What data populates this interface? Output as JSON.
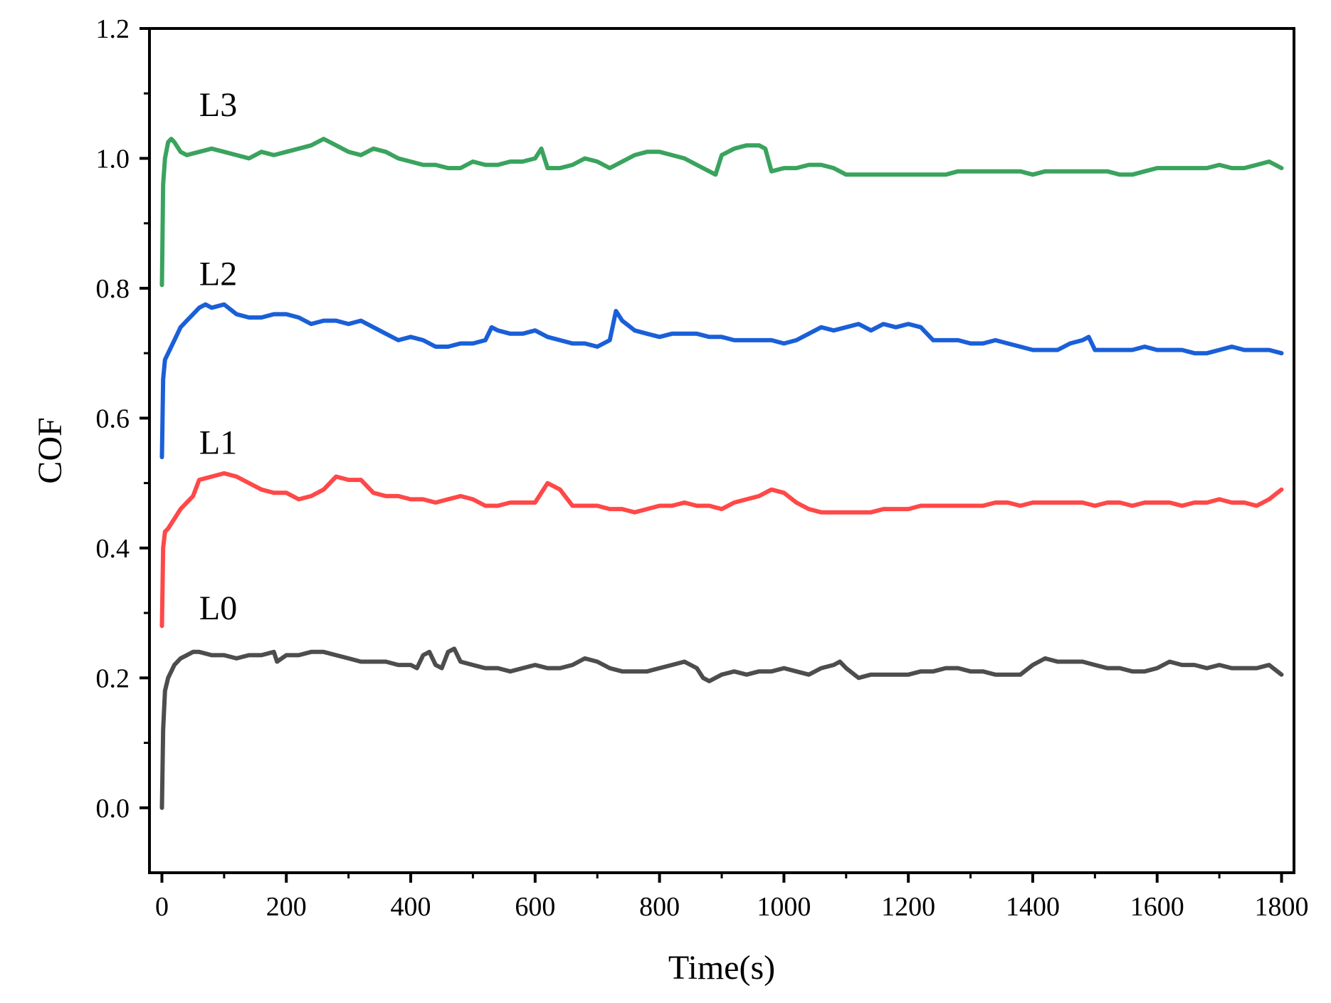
{
  "chart_data": {
    "type": "line",
    "title": "",
    "xlabel": "Time(s)",
    "ylabel": "COF",
    "xlim": [
      -20,
      1820
    ],
    "ylim": [
      -0.1,
      1.2
    ],
    "xticks": [
      0,
      200,
      400,
      600,
      800,
      1000,
      1200,
      1400,
      1600,
      1800
    ],
    "xtick_labels": [
      "0",
      "200",
      "400",
      "600",
      "800",
      "1000",
      "1200",
      "1400",
      "1600",
      "1800"
    ],
    "yticks": [
      0.0,
      0.2,
      0.4,
      0.6,
      0.8,
      1.0,
      1.2
    ],
    "ytick_labels": [
      "0.0",
      "0.2",
      "0.4",
      "0.6",
      "0.8",
      "1.0",
      "1.2"
    ],
    "grid": false,
    "legend": "inline labels",
    "series": [
      {
        "name": "L0",
        "color": "#4d4d4d",
        "label_at": [
          60,
          0.29
        ],
        "x": [
          0,
          2,
          5,
          10,
          20,
          30,
          40,
          50,
          60,
          80,
          100,
          120,
          140,
          160,
          180,
          185,
          200,
          220,
          240,
          260,
          280,
          300,
          320,
          340,
          360,
          380,
          400,
          410,
          420,
          430,
          440,
          450,
          460,
          470,
          480,
          500,
          520,
          540,
          560,
          580,
          600,
          620,
          640,
          660,
          680,
          700,
          720,
          740,
          760,
          780,
          800,
          820,
          840,
          860,
          870,
          880,
          900,
          920,
          940,
          960,
          980,
          1000,
          1020,
          1040,
          1060,
          1080,
          1090,
          1100,
          1120,
          1140,
          1160,
          1180,
          1200,
          1220,
          1240,
          1260,
          1280,
          1300,
          1320,
          1340,
          1360,
          1380,
          1400,
          1420,
          1440,
          1460,
          1480,
          1500,
          1520,
          1540,
          1560,
          1580,
          1600,
          1620,
          1640,
          1660,
          1680,
          1700,
          1720,
          1740,
          1760,
          1780,
          1800
        ],
        "y": [
          0.0,
          0.12,
          0.18,
          0.2,
          0.22,
          0.23,
          0.235,
          0.24,
          0.24,
          0.235,
          0.235,
          0.23,
          0.235,
          0.235,
          0.24,
          0.225,
          0.235,
          0.235,
          0.24,
          0.24,
          0.235,
          0.23,
          0.225,
          0.225,
          0.225,
          0.22,
          0.22,
          0.215,
          0.235,
          0.24,
          0.22,
          0.215,
          0.24,
          0.245,
          0.225,
          0.22,
          0.215,
          0.215,
          0.21,
          0.215,
          0.22,
          0.215,
          0.215,
          0.22,
          0.23,
          0.225,
          0.215,
          0.21,
          0.21,
          0.21,
          0.215,
          0.22,
          0.225,
          0.215,
          0.2,
          0.195,
          0.205,
          0.21,
          0.205,
          0.21,
          0.21,
          0.215,
          0.21,
          0.205,
          0.215,
          0.22,
          0.225,
          0.215,
          0.2,
          0.205,
          0.205,
          0.205,
          0.205,
          0.21,
          0.21,
          0.215,
          0.215,
          0.21,
          0.21,
          0.205,
          0.205,
          0.205,
          0.22,
          0.23,
          0.225,
          0.225,
          0.225,
          0.22,
          0.215,
          0.215,
          0.21,
          0.21,
          0.215,
          0.225,
          0.22,
          0.22,
          0.215,
          0.22,
          0.215,
          0.215,
          0.215,
          0.22,
          0.205
        ]
      },
      {
        "name": "L1",
        "color": "#ff4848",
        "label_at": [
          60,
          0.545
        ],
        "x": [
          0,
          2,
          5,
          10,
          20,
          30,
          40,
          50,
          60,
          80,
          100,
          120,
          140,
          160,
          180,
          200,
          220,
          240,
          260,
          280,
          300,
          320,
          340,
          360,
          380,
          400,
          420,
          440,
          460,
          480,
          500,
          520,
          540,
          560,
          580,
          600,
          620,
          640,
          660,
          680,
          700,
          720,
          740,
          760,
          780,
          800,
          820,
          840,
          860,
          880,
          900,
          920,
          940,
          960,
          980,
          1000,
          1020,
          1040,
          1060,
          1080,
          1100,
          1120,
          1140,
          1160,
          1180,
          1200,
          1220,
          1240,
          1260,
          1280,
          1300,
          1320,
          1340,
          1360,
          1380,
          1400,
          1420,
          1440,
          1460,
          1480,
          1500,
          1520,
          1540,
          1560,
          1580,
          1600,
          1620,
          1640,
          1660,
          1680,
          1700,
          1720,
          1740,
          1760,
          1780,
          1800
        ],
        "y": [
          0.28,
          0.4,
          0.425,
          0.43,
          0.445,
          0.46,
          0.47,
          0.48,
          0.505,
          0.51,
          0.515,
          0.51,
          0.5,
          0.49,
          0.485,
          0.485,
          0.475,
          0.48,
          0.49,
          0.51,
          0.505,
          0.505,
          0.485,
          0.48,
          0.48,
          0.475,
          0.475,
          0.47,
          0.475,
          0.48,
          0.475,
          0.465,
          0.465,
          0.47,
          0.47,
          0.47,
          0.5,
          0.49,
          0.465,
          0.465,
          0.465,
          0.46,
          0.46,
          0.455,
          0.46,
          0.465,
          0.465,
          0.47,
          0.465,
          0.465,
          0.46,
          0.47,
          0.475,
          0.48,
          0.49,
          0.485,
          0.47,
          0.46,
          0.455,
          0.455,
          0.455,
          0.455,
          0.455,
          0.46,
          0.46,
          0.46,
          0.465,
          0.465,
          0.465,
          0.465,
          0.465,
          0.465,
          0.47,
          0.47,
          0.465,
          0.47,
          0.47,
          0.47,
          0.47,
          0.47,
          0.465,
          0.47,
          0.47,
          0.465,
          0.47,
          0.47,
          0.47,
          0.465,
          0.47,
          0.47,
          0.475,
          0.47,
          0.47,
          0.465,
          0.475,
          0.49
        ]
      },
      {
        "name": "L2",
        "color": "#1a5fd8",
        "label_at": [
          60,
          0.805
        ],
        "x": [
          0,
          2,
          5,
          10,
          20,
          30,
          40,
          50,
          60,
          70,
          80,
          100,
          120,
          140,
          160,
          180,
          200,
          220,
          240,
          260,
          280,
          300,
          320,
          340,
          360,
          380,
          400,
          420,
          440,
          460,
          480,
          500,
          520,
          530,
          540,
          560,
          580,
          600,
          620,
          640,
          660,
          680,
          700,
          720,
          730,
          740,
          760,
          780,
          800,
          820,
          840,
          860,
          880,
          900,
          920,
          940,
          960,
          980,
          1000,
          1020,
          1040,
          1060,
          1080,
          1100,
          1120,
          1140,
          1160,
          1180,
          1200,
          1220,
          1240,
          1260,
          1280,
          1300,
          1320,
          1340,
          1360,
          1380,
          1400,
          1420,
          1440,
          1460,
          1480,
          1490,
          1500,
          1520,
          1540,
          1560,
          1580,
          1600,
          1620,
          1640,
          1660,
          1680,
          1700,
          1720,
          1740,
          1760,
          1780,
          1800
        ],
        "y": [
          0.54,
          0.66,
          0.69,
          0.7,
          0.72,
          0.74,
          0.75,
          0.76,
          0.77,
          0.775,
          0.77,
          0.775,
          0.76,
          0.755,
          0.755,
          0.76,
          0.76,
          0.755,
          0.745,
          0.75,
          0.75,
          0.745,
          0.75,
          0.74,
          0.73,
          0.72,
          0.725,
          0.72,
          0.71,
          0.71,
          0.715,
          0.715,
          0.72,
          0.74,
          0.735,
          0.73,
          0.73,
          0.735,
          0.725,
          0.72,
          0.715,
          0.715,
          0.71,
          0.72,
          0.765,
          0.75,
          0.735,
          0.73,
          0.725,
          0.73,
          0.73,
          0.73,
          0.725,
          0.725,
          0.72,
          0.72,
          0.72,
          0.72,
          0.715,
          0.72,
          0.73,
          0.74,
          0.735,
          0.74,
          0.745,
          0.735,
          0.745,
          0.74,
          0.745,
          0.74,
          0.72,
          0.72,
          0.72,
          0.715,
          0.715,
          0.72,
          0.715,
          0.71,
          0.705,
          0.705,
          0.705,
          0.715,
          0.72,
          0.725,
          0.705,
          0.705,
          0.705,
          0.705,
          0.71,
          0.705,
          0.705,
          0.705,
          0.7,
          0.7,
          0.705,
          0.71,
          0.705,
          0.705,
          0.705,
          0.7
        ]
      },
      {
        "name": "L3",
        "color": "#3aa35e",
        "label_at": [
          60,
          1.065
        ],
        "x": [
          0,
          2,
          5,
          10,
          15,
          20,
          30,
          40,
          60,
          80,
          100,
          120,
          140,
          160,
          180,
          200,
          220,
          240,
          260,
          280,
          300,
          320,
          340,
          360,
          380,
          400,
          420,
          440,
          460,
          480,
          500,
          520,
          540,
          560,
          580,
          600,
          610,
          620,
          640,
          660,
          680,
          700,
          720,
          740,
          760,
          780,
          800,
          820,
          840,
          860,
          880,
          890,
          900,
          920,
          940,
          960,
          970,
          980,
          1000,
          1020,
          1040,
          1060,
          1080,
          1100,
          1120,
          1140,
          1160,
          1180,
          1200,
          1220,
          1240,
          1260,
          1280,
          1300,
          1320,
          1340,
          1360,
          1380,
          1400,
          1420,
          1440,
          1460,
          1480,
          1500,
          1520,
          1540,
          1560,
          1580,
          1600,
          1620,
          1640,
          1660,
          1680,
          1700,
          1720,
          1740,
          1760,
          1780,
          1800
        ],
        "y": [
          0.805,
          0.96,
          1.0,
          1.025,
          1.03,
          1.025,
          1.01,
          1.005,
          1.01,
          1.015,
          1.01,
          1.005,
          1.0,
          1.01,
          1.005,
          1.01,
          1.015,
          1.02,
          1.03,
          1.02,
          1.01,
          1.005,
          1.015,
          1.01,
          1.0,
          0.995,
          0.99,
          0.99,
          0.985,
          0.985,
          0.995,
          0.99,
          0.99,
          0.995,
          0.995,
          1.0,
          1.015,
          0.985,
          0.985,
          0.99,
          1.0,
          0.995,
          0.985,
          0.995,
          1.005,
          1.01,
          1.01,
          1.005,
          1.0,
          0.99,
          0.98,
          0.975,
          1.005,
          1.015,
          1.02,
          1.02,
          1.015,
          0.98,
          0.985,
          0.985,
          0.99,
          0.99,
          0.985,
          0.975,
          0.975,
          0.975,
          0.975,
          0.975,
          0.975,
          0.975,
          0.975,
          0.975,
          0.98,
          0.98,
          0.98,
          0.98,
          0.98,
          0.98,
          0.975,
          0.98,
          0.98,
          0.98,
          0.98,
          0.98,
          0.98,
          0.975,
          0.975,
          0.98,
          0.985,
          0.985,
          0.985,
          0.985,
          0.985,
          0.99,
          0.985,
          0.985,
          0.99,
          0.995,
          0.985
        ]
      }
    ]
  }
}
